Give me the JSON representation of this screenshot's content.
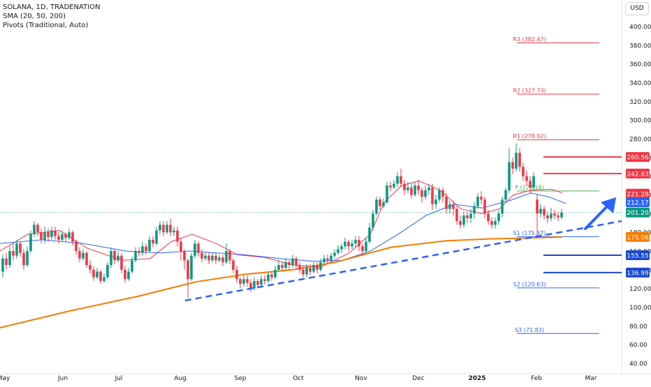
{
  "legend": {
    "symbol": "SOLANA, 1D, TRADENATION",
    "sma": "SMA (20, 50, 200)",
    "pivots": "Pivots (Traditional, Auto)"
  },
  "currency_button": "USD",
  "chart_data": {
    "type": "candlestick",
    "symbol": "SOLANA",
    "interval": "1D",
    "ylim": [
      40,
      420
    ],
    "y_ticks": [
      "400.00",
      "380.00",
      "360.00",
      "340.00",
      "320.00",
      "300.00",
      "280.00",
      "260.00",
      "240.00",
      "220.00",
      "200.00",
      "180.00",
      "160.00",
      "140.00",
      "120.00",
      "100.00",
      "80.00",
      "60.00",
      "40.00"
    ],
    "x_ticks": [
      "May",
      "Jun",
      "Jul",
      "Aug",
      "Sep",
      "Oct",
      "Nov",
      "Dec",
      "2025",
      "Feb",
      "Mar"
    ],
    "pivots": [
      {
        "label": "R3 (382.47)",
        "value": 382.47,
        "color": "#f23645"
      },
      {
        "label": "R2 (327.73)",
        "value": 327.73,
        "color": "#f23645"
      },
      {
        "label": "R1 (278.92)",
        "value": 278.92,
        "color": "#f23645"
      },
      {
        "label": "P (224.18)",
        "value": 224.18,
        "color": "#4caf50"
      },
      {
        "label": "S1 (175.37)",
        "value": 175.37,
        "color": "#2962ff"
      },
      {
        "label": "S2 (120.63)",
        "value": 120.63,
        "color": "#2962ff"
      },
      {
        "label": "S3 (71.82)",
        "value": 71.82,
        "color": "#2962ff"
      }
    ],
    "horizontal_levels": [
      {
        "value": 260.56,
        "label": "260.56",
        "color": "#f23645"
      },
      {
        "value": 242.83,
        "label": "242.83",
        "color": "#f23645"
      },
      {
        "value": 155.55,
        "label": "155.55",
        "color": "#1848cc"
      },
      {
        "value": 136.99,
        "label": "136.99",
        "color": "#1848cc"
      }
    ],
    "price_tags": [
      {
        "value": 221.28,
        "label": "221.28",
        "color": "#f23645"
      },
      {
        "value": 212.17,
        "label": "212.17",
        "color": "#2962ff"
      },
      {
        "value": 201.2,
        "label": "201.20",
        "color": "#089981"
      },
      {
        "value": 175.06,
        "label": "175.06",
        "color": "#f57c00"
      }
    ],
    "last_price": 201.2,
    "sma_series": [
      {
        "name": "SMA 20",
        "color": "#f23645",
        "points": [
          [
            0,
            160
          ],
          [
            40,
            178
          ],
          [
            85,
            182
          ],
          [
            125,
            163
          ],
          [
            175,
            150
          ],
          [
            215,
            152
          ],
          [
            245,
            170
          ],
          [
            275,
            178
          ],
          [
            310,
            168
          ],
          [
            340,
            156
          ],
          [
            380,
            153
          ],
          [
            420,
            145
          ],
          [
            460,
            143
          ],
          [
            500,
            158
          ],
          [
            530,
            178
          ],
          [
            550,
            212
          ],
          [
            575,
            230
          ],
          [
            600,
            235
          ],
          [
            630,
            225
          ],
          [
            660,
            205
          ],
          [
            690,
            200
          ],
          [
            715,
            205
          ],
          [
            735,
            220
          ],
          [
            760,
            225
          ],
          [
            790,
            226
          ],
          [
            805,
            222
          ]
        ]
      },
      {
        "name": "SMA 50",
        "color": "#2962ff",
        "points": [
          [
            0,
            168
          ],
          [
            60,
            172
          ],
          [
            120,
            168
          ],
          [
            180,
            160
          ],
          [
            230,
            158
          ],
          [
            270,
            160
          ],
          [
            310,
            158
          ],
          [
            350,
            156
          ],
          [
            400,
            152
          ],
          [
            450,
            149
          ],
          [
            490,
            150
          ],
          [
            530,
            160
          ],
          [
            570,
            178
          ],
          [
            610,
            198
          ],
          [
            650,
            210
          ],
          [
            690,
            206
          ],
          [
            730,
            214
          ],
          [
            760,
            222
          ],
          [
            785,
            218
          ],
          [
            810,
            211
          ]
        ]
      },
      {
        "name": "SMA 200",
        "color": "#f57c00",
        "points": [
          [
            0,
            78
          ],
          [
            100,
            96
          ],
          [
            200,
            112
          ],
          [
            280,
            127
          ],
          [
            350,
            135
          ],
          [
            420,
            140
          ],
          [
            480,
            148
          ],
          [
            560,
            164
          ],
          [
            640,
            171
          ],
          [
            700,
            173
          ],
          [
            760,
            174
          ],
          [
            805,
            175
          ]
        ]
      }
    ],
    "candles": [
      [
        4,
        138,
        152,
        132,
        156
      ],
      [
        9,
        152,
        145,
        140,
        158
      ],
      [
        14,
        145,
        160,
        142,
        165
      ],
      [
        19,
        160,
        155,
        150,
        168
      ],
      [
        24,
        155,
        168,
        152,
        172
      ],
      [
        29,
        168,
        158,
        154,
        170
      ],
      [
        34,
        158,
        145,
        140,
        162
      ],
      [
        39,
        145,
        160,
        143,
        165
      ],
      [
        44,
        160,
        178,
        158,
        182
      ],
      [
        49,
        178,
        188,
        175,
        192
      ],
      [
        54,
        188,
        180,
        176,
        190
      ],
      [
        59,
        180,
        172,
        168,
        184
      ],
      [
        64,
        172,
        180,
        168,
        186
      ],
      [
        69,
        180,
        175,
        170,
        184
      ],
      [
        74,
        175,
        182,
        172,
        186
      ],
      [
        79,
        182,
        176,
        172,
        186
      ],
      [
        84,
        176,
        172,
        168,
        180
      ],
      [
        89,
        172,
        178,
        170,
        182
      ],
      [
        94,
        178,
        174,
        170,
        180
      ],
      [
        99,
        174,
        180,
        172,
        184
      ],
      [
        104,
        180,
        170,
        166,
        182
      ],
      [
        109,
        170,
        160,
        156,
        172
      ],
      [
        114,
        160,
        152,
        148,
        164
      ],
      [
        119,
        152,
        158,
        150,
        162
      ],
      [
        124,
        158,
        145,
        142,
        160
      ],
      [
        129,
        145,
        140,
        136,
        150
      ],
      [
        134,
        140,
        132,
        128,
        144
      ],
      [
        139,
        132,
        138,
        130,
        142
      ],
      [
        144,
        138,
        128,
        125,
        140
      ],
      [
        149,
        128,
        132,
        126,
        136
      ],
      [
        154,
        132,
        145,
        130,
        148
      ],
      [
        159,
        145,
        160,
        142,
        164
      ],
      [
        164,
        160,
        150,
        146,
        162
      ],
      [
        169,
        150,
        155,
        148,
        160
      ],
      [
        174,
        155,
        140,
        136,
        158
      ],
      [
        179,
        140,
        130,
        126,
        144
      ],
      [
        184,
        130,
        138,
        128,
        142
      ],
      [
        189,
        138,
        150,
        136,
        154
      ],
      [
        194,
        150,
        160,
        148,
        164
      ],
      [
        199,
        160,
        158,
        154,
        164
      ],
      [
        204,
        158,
        165,
        155,
        170
      ],
      [
        209,
        165,
        160,
        156,
        168
      ],
      [
        214,
        160,
        172,
        158,
        176
      ],
      [
        219,
        172,
        168,
        164,
        176
      ],
      [
        224,
        168,
        182,
        166,
        186
      ],
      [
        229,
        182,
        188,
        178,
        192
      ],
      [
        234,
        188,
        180,
        176,
        192
      ],
      [
        239,
        180,
        188,
        178,
        192
      ],
      [
        244,
        188,
        180,
        176,
        195
      ],
      [
        249,
        180,
        182,
        176,
        186
      ],
      [
        254,
        182,
        170,
        165,
        186
      ],
      [
        259,
        170,
        160,
        150,
        174
      ],
      [
        264,
        160,
        150,
        140,
        162
      ],
      [
        269,
        150,
        130,
        110,
        152
      ],
      [
        274,
        130,
        155,
        128,
        158
      ],
      [
        279,
        155,
        168,
        152,
        172
      ],
      [
        284,
        168,
        158,
        154,
        170
      ],
      [
        289,
        158,
        152,
        148,
        162
      ],
      [
        294,
        152,
        155,
        150,
        158
      ],
      [
        299,
        155,
        150,
        146,
        158
      ],
      [
        304,
        150,
        155,
        148,
        158
      ],
      [
        309,
        155,
        150,
        146,
        158
      ],
      [
        314,
        150,
        153,
        148,
        156
      ],
      [
        319,
        153,
        148,
        144,
        156
      ],
      [
        324,
        148,
        160,
        146,
        168
      ],
      [
        329,
        160,
        150,
        146,
        162
      ],
      [
        334,
        150,
        140,
        136,
        152
      ],
      [
        339,
        140,
        130,
        126,
        144
      ],
      [
        344,
        130,
        125,
        120,
        132
      ],
      [
        349,
        125,
        130,
        122,
        134
      ],
      [
        354,
        130,
        126,
        122,
        134
      ],
      [
        359,
        126,
        120,
        116,
        130
      ],
      [
        364,
        120,
        128,
        118,
        132
      ],
      [
        369,
        128,
        124,
        120,
        130
      ],
      [
        374,
        124,
        130,
        122,
        134
      ],
      [
        379,
        130,
        128,
        124,
        134
      ],
      [
        384,
        128,
        135,
        126,
        138
      ],
      [
        389,
        135,
        132,
        128,
        138
      ],
      [
        394,
        132,
        140,
        130,
        144
      ],
      [
        399,
        140,
        145,
        138,
        150
      ],
      [
        404,
        145,
        142,
        138,
        148
      ],
      [
        409,
        142,
        148,
        140,
        152
      ],
      [
        414,
        148,
        145,
        140,
        150
      ],
      [
        419,
        145,
        152,
        142,
        156
      ],
      [
        424,
        152,
        145,
        140,
        154
      ],
      [
        429,
        145,
        140,
        136,
        148
      ],
      [
        434,
        140,
        135,
        132,
        144
      ],
      [
        439,
        135,
        142,
        132,
        146
      ],
      [
        444,
        142,
        138,
        134,
        146
      ],
      [
        449,
        138,
        145,
        136,
        148
      ],
      [
        454,
        145,
        140,
        136,
        148
      ],
      [
        459,
        140,
        148,
        138,
        152
      ],
      [
        464,
        148,
        152,
        146,
        156
      ],
      [
        469,
        152,
        150,
        146,
        156
      ],
      [
        474,
        150,
        155,
        148,
        158
      ],
      [
        479,
        155,
        158,
        152,
        162
      ],
      [
        484,
        158,
        162,
        156,
        166
      ],
      [
        489,
        162,
        165,
        158,
        168
      ],
      [
        494,
        165,
        170,
        162,
        174
      ],
      [
        499,
        170,
        165,
        160,
        172
      ],
      [
        504,
        165,
        168,
        162,
        172
      ],
      [
        509,
        168,
        172,
        164,
        176
      ],
      [
        514,
        172,
        165,
        160,
        176
      ],
      [
        519,
        165,
        160,
        155,
        168
      ],
      [
        524,
        160,
        170,
        158,
        174
      ],
      [
        529,
        170,
        185,
        168,
        190
      ],
      [
        534,
        185,
        200,
        182,
        204
      ],
      [
        539,
        200,
        215,
        198,
        218
      ],
      [
        544,
        215,
        208,
        204,
        218
      ],
      [
        549,
        208,
        212,
        206,
        216
      ],
      [
        554,
        212,
        230,
        210,
        234
      ],
      [
        559,
        230,
        228,
        224,
        234
      ],
      [
        564,
        228,
        232,
        226,
        236
      ],
      [
        569,
        232,
        240,
        228,
        244
      ],
      [
        574,
        240,
        232,
        228,
        248
      ],
      [
        579,
        232,
        225,
        220,
        236
      ],
      [
        584,
        225,
        228,
        222,
        234
      ],
      [
        589,
        228,
        220,
        216,
        232
      ],
      [
        594,
        220,
        230,
        218,
        234
      ],
      [
        599,
        230,
        225,
        220,
        236
      ],
      [
        604,
        225,
        218,
        212,
        228
      ],
      [
        609,
        218,
        225,
        215,
        230
      ],
      [
        614,
        225,
        228,
        220,
        232
      ],
      [
        619,
        228,
        210,
        204,
        232
      ],
      [
        624,
        210,
        215,
        205,
        220
      ],
      [
        629,
        215,
        225,
        212,
        228
      ],
      [
        634,
        225,
        218,
        212,
        228
      ],
      [
        639,
        218,
        205,
        200,
        222
      ],
      [
        644,
        205,
        210,
        200,
        214
      ],
      [
        649,
        210,
        205,
        198,
        214
      ],
      [
        654,
        205,
        192,
        188,
        208
      ],
      [
        659,
        192,
        188,
        184,
        198
      ],
      [
        664,
        188,
        198,
        185,
        202
      ],
      [
        669,
        198,
        195,
        190,
        202
      ],
      [
        674,
        195,
        200,
        190,
        205
      ],
      [
        679,
        200,
        208,
        195,
        212
      ],
      [
        684,
        208,
        218,
        205,
        222
      ],
      [
        689,
        218,
        215,
        210,
        224
      ],
      [
        694,
        215,
        200,
        195,
        218
      ],
      [
        699,
        200,
        192,
        188,
        204
      ],
      [
        704,
        192,
        188,
        184,
        196
      ],
      [
        709,
        188,
        192,
        184,
        196
      ],
      [
        714,
        192,
        200,
        188,
        204
      ],
      [
        719,
        200,
        215,
        196,
        218
      ],
      [
        724,
        215,
        225,
        212,
        228
      ],
      [
        729,
        225,
        255,
        222,
        270
      ],
      [
        734,
        255,
        248,
        242,
        260
      ],
      [
        739,
        248,
        265,
        245,
        275
      ],
      [
        744,
        265,
        250,
        245,
        270
      ],
      [
        749,
        250,
        240,
        235,
        254
      ],
      [
        754,
        240,
        235,
        230,
        246
      ],
      [
        759,
        235,
        228,
        222,
        240
      ],
      [
        764,
        228,
        240,
        225,
        244
      ],
      [
        769,
        215,
        200,
        175,
        220
      ],
      [
        774,
        200,
        205,
        196,
        210
      ],
      [
        779,
        205,
        198,
        194,
        208
      ],
      [
        784,
        198,
        195,
        190,
        202
      ],
      [
        789,
        195,
        200,
        192,
        206
      ],
      [
        794,
        200,
        198,
        194,
        204
      ],
      [
        799,
        198,
        196,
        192,
        202
      ],
      [
        804,
        196,
        201,
        194,
        205
      ]
    ]
  },
  "annotations": {
    "trendline": "dashed blue uptrend",
    "arrow": "blue arrow up-right"
  }
}
